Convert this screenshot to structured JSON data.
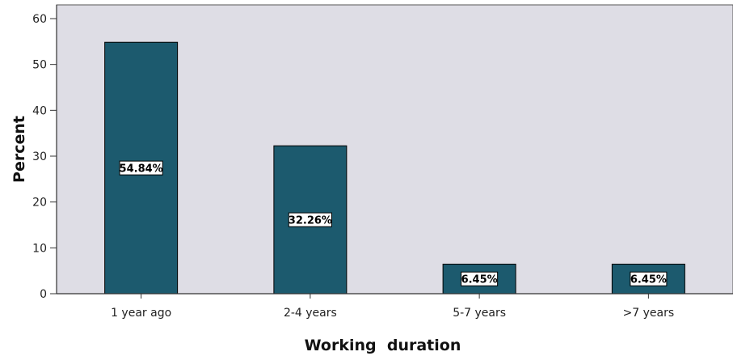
{
  "chart_data": {
    "type": "bar",
    "title": "",
    "xlabel": "Working  duration",
    "ylabel": "Percent",
    "categories": [
      "1 year ago",
      "2-4 years",
      "5-7 years",
      ">7 years"
    ],
    "values": [
      54.84,
      32.26,
      6.45,
      6.45
    ],
    "data_labels": [
      "54.84%",
      "32.26%",
      "6.45%",
      "6.45%"
    ],
    "ylim": [
      0,
      63
    ],
    "yticks": [
      0,
      10,
      20,
      30,
      40,
      50,
      60
    ],
    "grid": false,
    "legend": "none",
    "colors": {
      "bar": "#1c5a6e",
      "plot_background": "#dedde5",
      "axis": "#555555"
    }
  }
}
